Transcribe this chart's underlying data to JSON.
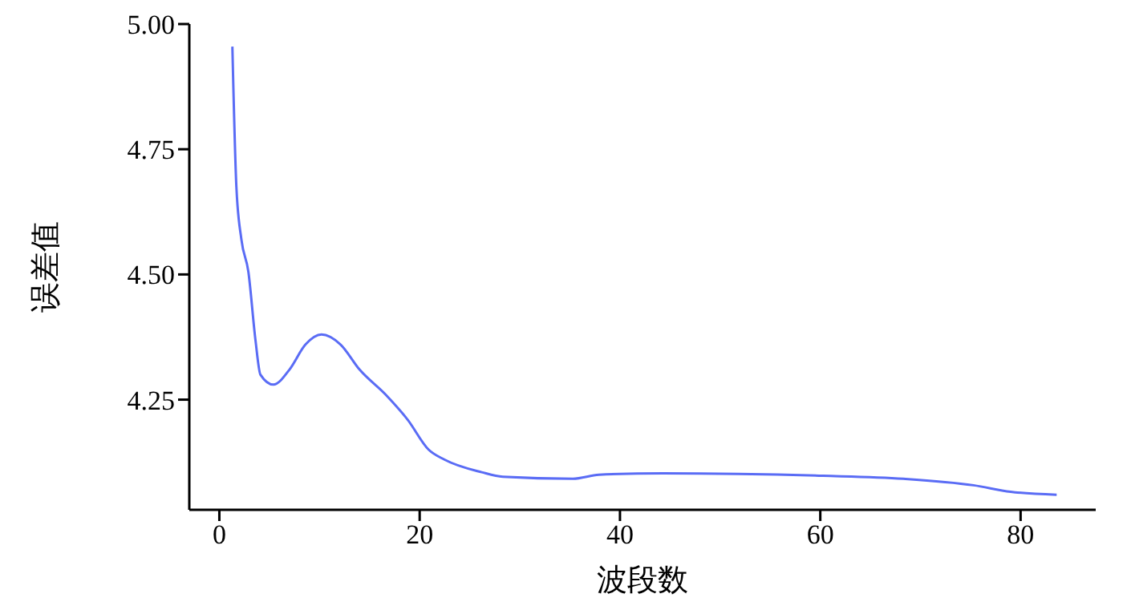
{
  "chart_data": {
    "type": "line",
    "xlabel": "波段数",
    "ylabel": "误差值",
    "xlim": [
      -3,
      87.5
    ],
    "xticks": [
      0,
      20,
      40,
      60,
      80
    ],
    "ylim": [
      4.03,
      5.0
    ],
    "yticks": [
      {
        "value": 4.25,
        "label": "4.25"
      },
      {
        "value": 4.5,
        "label": "4.50"
      },
      {
        "value": 4.75,
        "label": "4.75"
      },
      {
        "value": 5.0,
        "label": "5.00"
      }
    ],
    "grid": false,
    "legend": false,
    "marker": "none",
    "line_style": "solid",
    "series": [
      {
        "color": "#5a6cf5",
        "x": [
          1.3,
          1.7,
          2.2,
          2.9,
          3.6,
          4.1,
          5.4,
          7.0,
          8.6,
          10.2,
          12.1,
          14.0,
          16.6,
          18.8,
          20.9,
          22.5,
          26.2,
          28.3,
          35.3,
          37.9,
          44.3,
          60.3,
          68.3,
          75.3,
          79,
          83.6
        ],
        "values": [
          4.955,
          4.675,
          4.57,
          4.505,
          4.37,
          4.3,
          4.28,
          4.31,
          4.36,
          4.38,
          4.36,
          4.31,
          4.26,
          4.21,
          4.15,
          4.13,
          4.105,
          4.096,
          4.092,
          4.1,
          4.103,
          4.098,
          4.092,
          4.079,
          4.066,
          4.06
        ]
      }
    ]
  }
}
